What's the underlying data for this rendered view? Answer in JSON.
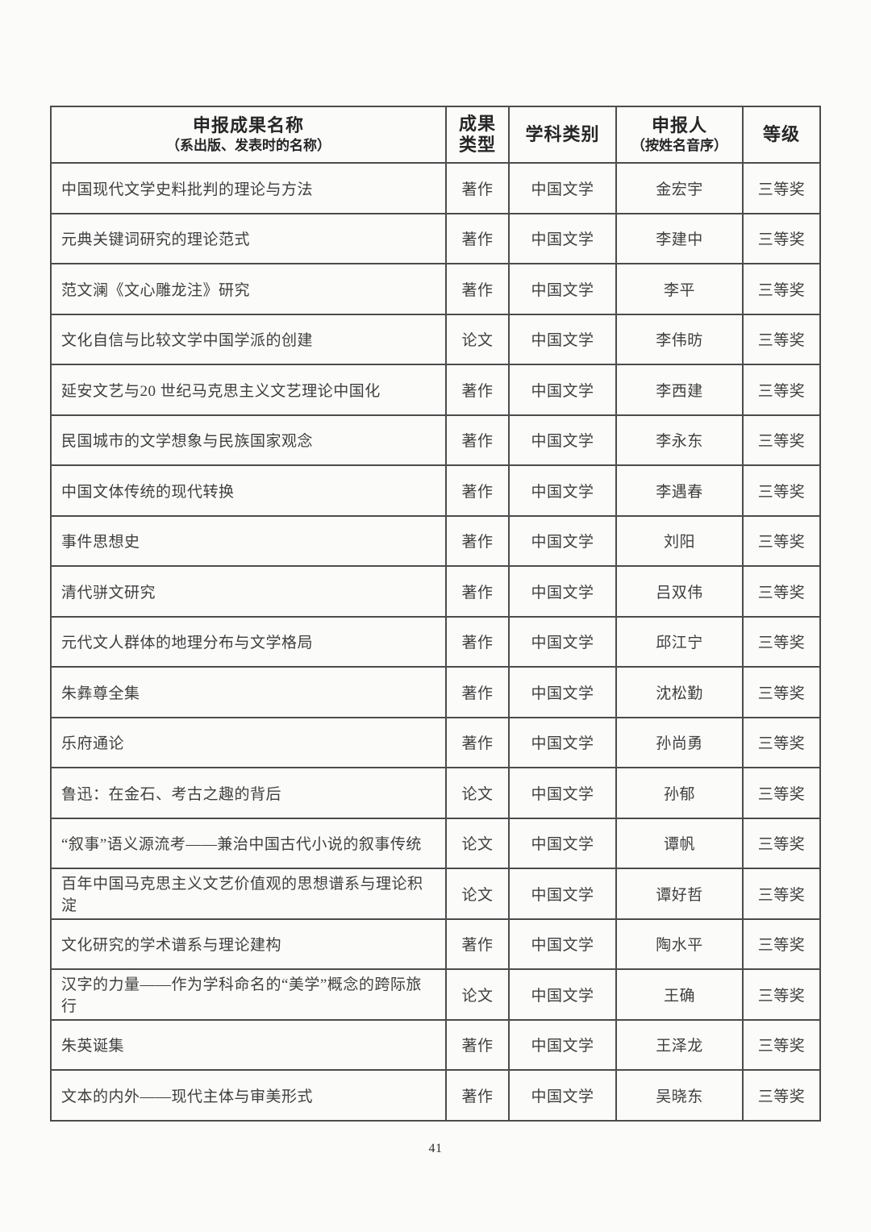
{
  "page": {
    "number": "41"
  },
  "table": {
    "headers": {
      "name": {
        "line1": "申报成果名称",
        "line2": "（系出版、发表时的名称）"
      },
      "type": {
        "line1": "成果",
        "line2": "类型"
      },
      "subject": "学科类别",
      "applicant": {
        "line1": "申报人",
        "line2": "（按姓名音序）"
      },
      "grade": "等级"
    },
    "rows": [
      {
        "name": "中国现代文学史料批判的理论与方法",
        "type": "著作",
        "subject": "中国文学",
        "applicant": "金宏宇",
        "grade": "三等奖"
      },
      {
        "name": "元典关键词研究的理论范式",
        "type": "著作",
        "subject": "中国文学",
        "applicant": "李建中",
        "grade": "三等奖"
      },
      {
        "name": "范文澜《文心雕龙注》研究",
        "type": "著作",
        "subject": "中国文学",
        "applicant": "李平",
        "grade": "三等奖"
      },
      {
        "name": "文化自信与比较文学中国学派的创建",
        "type": "论文",
        "subject": "中国文学",
        "applicant": "李伟昉",
        "grade": "三等奖"
      },
      {
        "name": "延安文艺与20 世纪马克思主义文艺理论中国化",
        "type": "著作",
        "subject": "中国文学",
        "applicant": "李西建",
        "grade": "三等奖"
      },
      {
        "name": "民国城市的文学想象与民族国家观念",
        "type": "著作",
        "subject": "中国文学",
        "applicant": "李永东",
        "grade": "三等奖"
      },
      {
        "name": "中国文体传统的现代转换",
        "type": "著作",
        "subject": "中国文学",
        "applicant": "李遇春",
        "grade": "三等奖"
      },
      {
        "name": "事件思想史",
        "type": "著作",
        "subject": "中国文学",
        "applicant": "刘阳",
        "grade": "三等奖"
      },
      {
        "name": "清代骈文研究",
        "type": "著作",
        "subject": "中国文学",
        "applicant": "吕双伟",
        "grade": "三等奖"
      },
      {
        "name": "元代文人群体的地理分布与文学格局",
        "type": "著作",
        "subject": "中国文学",
        "applicant": "邱江宁",
        "grade": "三等奖"
      },
      {
        "name": "朱彝尊全集",
        "type": "著作",
        "subject": "中国文学",
        "applicant": "沈松勤",
        "grade": "三等奖"
      },
      {
        "name": "乐府通论",
        "type": "著作",
        "subject": "中国文学",
        "applicant": "孙尚勇",
        "grade": "三等奖"
      },
      {
        "name": "鲁迅：在金石、考古之趣的背后",
        "type": "论文",
        "subject": "中国文学",
        "applicant": "孙郁",
        "grade": "三等奖"
      },
      {
        "name": "“叙事”语义源流考——兼治中国古代小说的叙事传统",
        "type": "论文",
        "subject": "中国文学",
        "applicant": "谭帆",
        "grade": "三等奖"
      },
      {
        "name": "百年中国马克思主义文艺价值观的思想谱系与理论积淀",
        "type": "论文",
        "subject": "中国文学",
        "applicant": "谭好哲",
        "grade": "三等奖"
      },
      {
        "name": "文化研究的学术谱系与理论建构",
        "type": "著作",
        "subject": "中国文学",
        "applicant": "陶水平",
        "grade": "三等奖"
      },
      {
        "name": "汉字的力量——作为学科命名的“美学”概念的跨际旅行",
        "type": "论文",
        "subject": "中国文学",
        "applicant": "王确",
        "grade": "三等奖"
      },
      {
        "name": "朱英诞集",
        "type": "著作",
        "subject": "中国文学",
        "applicant": "王泽龙",
        "grade": "三等奖"
      },
      {
        "name": "文本的内外——现代主体与审美形式",
        "type": "著作",
        "subject": "中国文学",
        "applicant": "吴晓东",
        "grade": "三等奖"
      }
    ]
  }
}
